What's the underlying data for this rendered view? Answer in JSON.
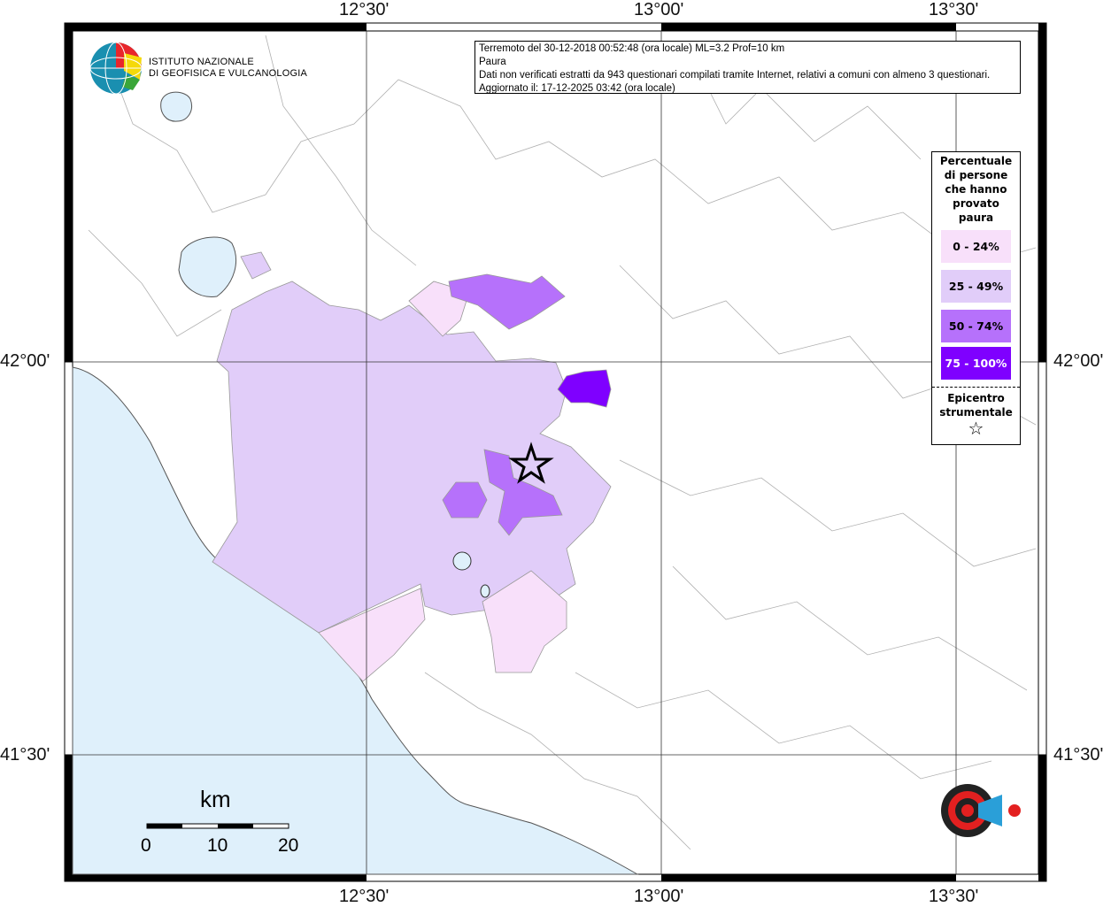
{
  "info": {
    "line1": "Terremoto del 30-12-2018 00:52:48 (ora locale) ML=3.2 Prof=10 km",
    "line2": "Paura",
    "line3": "Dati non verificati estratti da 943 questionari compilati tramite Internet, relativi a comuni con almeno 3 questionari.",
    "line4": "Aggiornato il: 17-12-2025 03:42 (ora locale)"
  },
  "logo": {
    "line1": "ISTITUTO NAZIONALE",
    "line2": "DI GEOFISICA E VULCANOLOGIA"
  },
  "brand_logo": "haisentitoilterremoto.it www",
  "axes": {
    "lon_ticks": [
      "12°30'",
      "13°00'",
      "13°30'"
    ],
    "lat_ticks": [
      "42°00'",
      "41°30'"
    ]
  },
  "legend": {
    "title": "Percentuale di persone che hanno provato paura",
    "title_lines": [
      "Percentuale",
      "di persone",
      "che hanno",
      "provato",
      "paura"
    ],
    "classes": [
      {
        "label": "0 - 24%",
        "color": "#f8e0fa"
      },
      {
        "label": "25 - 49%",
        "color": "#e1cdf9"
      },
      {
        "label": "50 - 74%",
        "color": "#b671fb"
      },
      {
        "label": "75 - 100%",
        "color": "#7f00ff"
      }
    ],
    "epicenter_label_lines": [
      "Epicentro",
      "strumentale"
    ],
    "epicenter_icon": "star-outline-icon"
  },
  "scale": {
    "unit": "km",
    "labels": [
      "0",
      "10",
      "20"
    ]
  },
  "colors": {
    "sea": "#dff0fb",
    "lake": "#dff0fb",
    "border": "#b0b0b0"
  }
}
